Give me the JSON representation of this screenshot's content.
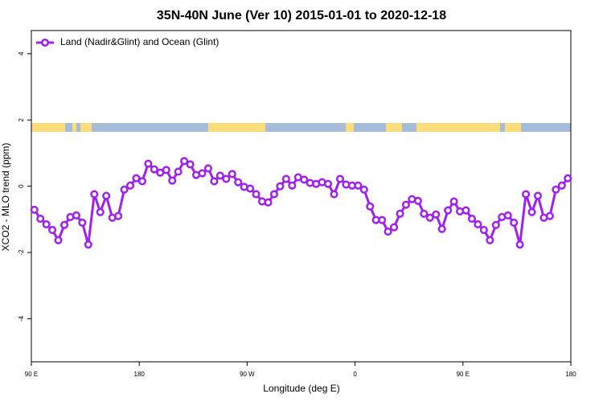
{
  "chart_data": {
    "type": "line",
    "title": "35N-40N June (Ver 10)   2015-01-01 to 2020-12-18",
    "x_label": "Longitude (deg E)",
    "y_label": "XCO2 - MLO trend (ppm)",
    "xlim": [
      90,
      540
    ],
    "xticks": [
      {
        "value": 90,
        "label": "90 E"
      },
      {
        "value": 180,
        "label": "180"
      },
      {
        "value": 270,
        "label": "90 W"
      },
      {
        "value": 360,
        "label": "0"
      },
      {
        "value": 450,
        "label": "90 E"
      },
      {
        "value": 540,
        "label": "180"
      }
    ],
    "ylim": [
      -5.3,
      4.7
    ],
    "yticks": [
      -4,
      -2,
      0,
      2,
      4
    ],
    "legend": "top-left",
    "x": [
      92.5,
      97.5,
      102.5,
      107.5,
      112.5,
      117.5,
      122.5,
      127.5,
      132.5,
      137.5,
      142.5,
      147.5,
      152.5,
      157.5,
      162.5,
      167.5,
      172.5,
      177.5,
      182.5,
      187.5,
      192.5,
      197.5,
      202.5,
      207.5,
      212.5,
      217.5,
      222.5,
      227.5,
      232.5,
      237.5,
      242.5,
      247.5,
      252.5,
      257.5,
      262.5,
      267.5,
      272.5,
      277.5,
      282.5,
      287.5,
      292.5,
      297.5,
      302.5,
      307.5,
      312.5,
      317.5,
      322.5,
      327.5,
      332.5,
      337.5,
      342.5,
      347.5,
      352.5,
      357.5,
      362.5,
      367.5,
      372.5,
      377.5,
      382.5,
      387.5,
      392.5,
      397.5,
      402.5,
      407.5,
      412.5,
      417.5,
      422.5,
      427.5,
      432.5,
      437.5,
      442.5,
      447.5,
      452.5,
      457.5,
      462.5,
      467.5,
      472.5,
      477.5,
      482.5,
      487.5,
      492.5,
      497.5,
      502.5,
      507.5,
      512.5,
      517.5,
      522.5,
      527.5,
      532.5,
      537.5
    ],
    "series": [
      {
        "name": "Land (Nadir&Glint) and Ocean (Glint)",
        "color": "#a020f0",
        "values": [
          -0.71,
          -0.98,
          -1.15,
          -1.32,
          -1.63,
          -1.17,
          -0.93,
          -0.88,
          -1.1,
          -1.76,
          -0.24,
          -0.78,
          -0.29,
          -0.95,
          -0.9,
          -0.1,
          0.02,
          0.24,
          0.15,
          0.68,
          0.51,
          0.41,
          0.49,
          0.17,
          0.44,
          0.76,
          0.66,
          0.34,
          0.39,
          0.54,
          0.15,
          0.32,
          0.22,
          0.37,
          0.12,
          -0.02,
          -0.07,
          -0.24,
          -0.46,
          -0.49,
          -0.24,
          0,
          0.22,
          0.02,
          0.27,
          0.2,
          0.1,
          0.07,
          0.12,
          0.07,
          -0.24,
          0.22,
          0.05,
          0.02,
          0.02,
          -0.1,
          -0.61,
          -1.02,
          -1.02,
          -1.37,
          -1.24,
          -0.83,
          -0.56,
          -0.39,
          -0.44,
          -0.83,
          -0.95,
          -0.85,
          -1.29,
          -0.73,
          -0.46,
          -0.76,
          -0.73,
          -0.98,
          -1.15,
          -1.32,
          -1.63,
          -1.17,
          -0.93,
          -0.88,
          -1.1,
          -1.76,
          -0.24,
          -0.78,
          -0.29,
          -0.95,
          -0.9,
          -0.1,
          0.02,
          0.24
        ]
      }
    ]
  }
}
